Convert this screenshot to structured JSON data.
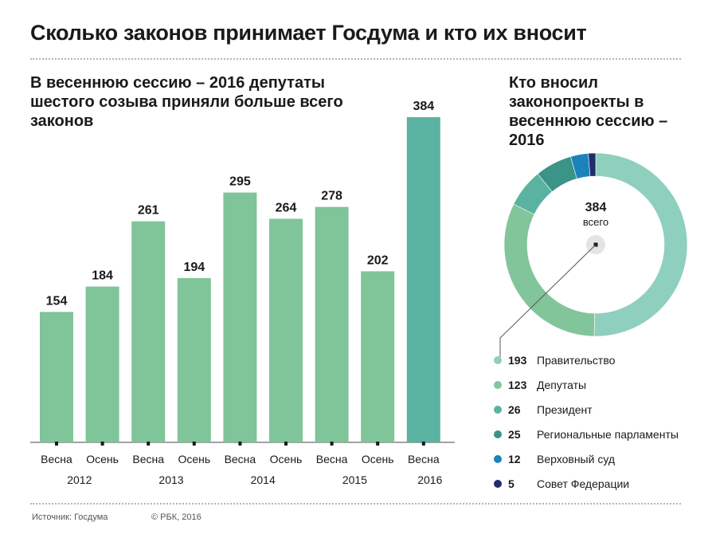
{
  "header": {
    "title": "Сколько законов принимает Госдума и кто их вносит"
  },
  "left_panel": {
    "title": "В весеннюю сессию – 2016 депутаты шестого созыва приняли больше всего законов"
  },
  "right_panel": {
    "title": "Кто вносил законопроекты в весеннюю сессию – 2016"
  },
  "donut_center": {
    "value": "384",
    "label": "всего"
  },
  "footer": {
    "source": "Источник: Госдума",
    "copyright": "© РБК, 2016"
  },
  "colors": {
    "bar": "#80c49a",
    "bar_highlight": "#5ab3a0",
    "tick": "#1a1a1a"
  },
  "chart_data": [
    {
      "type": "bar",
      "categories": [
        "Весна",
        "Осень",
        "Весна",
        "Осень",
        "Весна",
        "Осень",
        "Весна",
        "Осень",
        "Весна"
      ],
      "years": [
        "2012",
        "2013",
        "2014",
        "2015",
        "2016"
      ],
      "values": [
        154,
        184,
        261,
        194,
        295,
        264,
        278,
        202,
        384
      ],
      "highlight_index": 8,
      "ylim": [
        0,
        400
      ],
      "grid": false
    },
    {
      "type": "pie",
      "subtype": "donut",
      "total": 384,
      "series": [
        {
          "name": "Правительство",
          "value": 193,
          "color": "#8fcfbd"
        },
        {
          "name": "Депутаты",
          "value": 123,
          "color": "#82c59b"
        },
        {
          "name": "Президент",
          "value": 26,
          "color": "#5ab3a0"
        },
        {
          "name": "Региональные парламенты",
          "value": 25,
          "color": "#3a9488"
        },
        {
          "name": "Верховный суд",
          "value": 12,
          "color": "#1a83bd"
        },
        {
          "name": "Совет Федерации",
          "value": 5,
          "color": "#1f2e6b"
        }
      ]
    }
  ]
}
